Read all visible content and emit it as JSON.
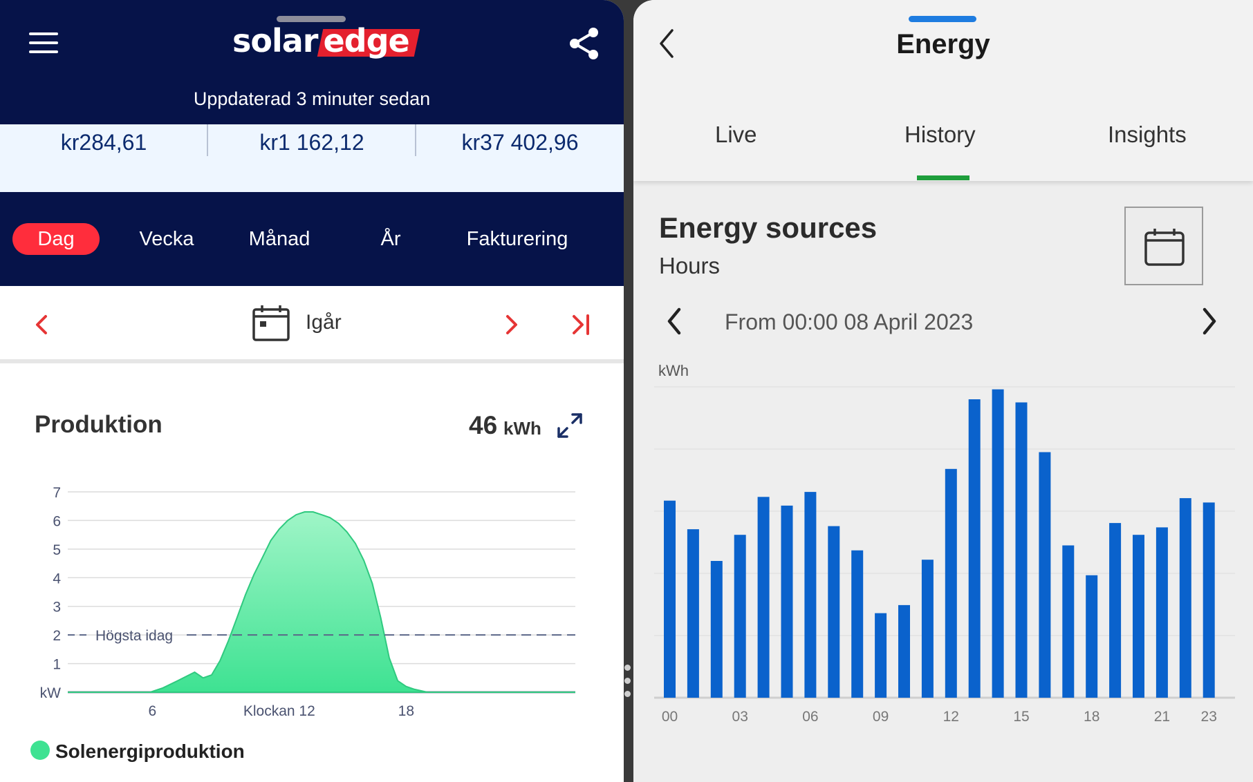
{
  "left": {
    "logo": {
      "solar": "solar",
      "edge": "edge"
    },
    "updated": "Uppdaterad 3 minuter sedan",
    "amounts": [
      "kr284,61",
      "kr1 162,12",
      "kr37 402,96"
    ],
    "tabs": [
      {
        "label": "Dag",
        "active": true
      },
      {
        "label": "Vecka",
        "active": false
      },
      {
        "label": "Månad",
        "active": false
      },
      {
        "label": "År",
        "active": false
      },
      {
        "label": "Fakturering",
        "active": false
      }
    ],
    "date_label": "Igår",
    "production": {
      "title": "Produktion",
      "value": "46",
      "unit": "kWh"
    },
    "legend": "Solenergiproduktion",
    "icons": [
      "menu-icon",
      "share-icon",
      "chevron-left-icon",
      "calendar-icon",
      "chevron-right-icon",
      "skip-to-end-icon",
      "expand-icon"
    ]
  },
  "right": {
    "title": "Energy",
    "tabs": [
      {
        "label": "Live",
        "active": false
      },
      {
        "label": "History",
        "active": true
      },
      {
        "label": "Insights",
        "active": false
      }
    ],
    "section_title": "Energy sources",
    "section_subtitle": "Hours",
    "from_label": "From 00:00 08 April 2023",
    "icons": [
      "back-icon",
      "calendar-icon",
      "chevron-left-icon",
      "chevron-right-icon"
    ]
  },
  "colors": {
    "navy": "#061349",
    "red_accent": "#ff2d3c",
    "solar_green": "#3ee292",
    "bar_blue": "#0a62cc",
    "tab_underline_green": "#1f9e3c"
  },
  "chart_data": [
    {
      "type": "area",
      "title": "",
      "xlabel": "Klockan 12",
      "ylabel": "kW",
      "ylim": [
        0,
        7
      ],
      "yticks": [
        "kW",
        "1",
        "2",
        "3",
        "4",
        "5",
        "6",
        "7"
      ],
      "xtick_labels": [
        "6",
        "Klockan 12",
        "18"
      ],
      "xticks": [
        6,
        12,
        18
      ],
      "xlim": [
        2,
        26
      ],
      "grid": true,
      "reference_line": {
        "value": 2,
        "label": "Högsta idag"
      },
      "series": [
        {
          "name": "Solenergiproduktion",
          "x": [
            2,
            5.9,
            6.5,
            7.2,
            8.0,
            8.4,
            8.8,
            9.2,
            9.6,
            10.0,
            10.4,
            10.8,
            11.2,
            11.6,
            12.0,
            12.4,
            12.8,
            13.2,
            13.6,
            14.0,
            14.4,
            14.8,
            15.2,
            15.6,
            16.0,
            16.4,
            16.8,
            17.2,
            17.6,
            18.0,
            18.4,
            19.0,
            19.5,
            20.0,
            22.0,
            26
          ],
          "y": [
            0,
            0,
            0.15,
            0.4,
            0.7,
            0.5,
            0.6,
            1.1,
            1.8,
            2.6,
            3.4,
            4.1,
            4.7,
            5.3,
            5.7,
            6.0,
            6.2,
            6.3,
            6.3,
            6.2,
            6.1,
            5.9,
            5.6,
            5.2,
            4.6,
            3.8,
            2.6,
            1.2,
            0.4,
            0.2,
            0.1,
            0,
            0,
            0,
            0,
            0
          ]
        }
      ]
    },
    {
      "type": "bar",
      "title": "",
      "ylabel": "kWh",
      "ylim": [
        0,
        5
      ],
      "grid": true,
      "categories": [
        "00",
        "01",
        "02",
        "03",
        "04",
        "05",
        "06",
        "07",
        "08",
        "09",
        "10",
        "11",
        "12",
        "13",
        "14",
        "15",
        "16",
        "17",
        "18",
        "19",
        "20",
        "21",
        "22",
        "23"
      ],
      "tick_labels": [
        "00",
        "03",
        "06",
        "09",
        "12",
        "15",
        "18",
        "21",
        "23"
      ],
      "series": [
        {
          "values": [
            3.17,
            2.71,
            2.2,
            2.62,
            3.23,
            3.09,
            3.31,
            2.76,
            2.37,
            1.36,
            1.49,
            2.22,
            3.68,
            4.8,
            4.96,
            4.75,
            3.95,
            2.45,
            1.97,
            2.81,
            2.62,
            2.74,
            3.21,
            3.14
          ]
        }
      ]
    }
  ]
}
